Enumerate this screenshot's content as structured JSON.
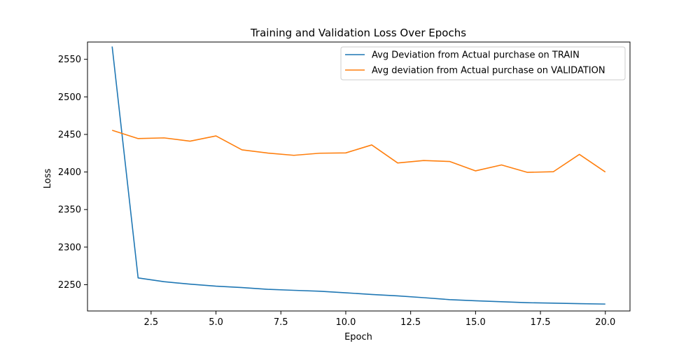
{
  "chart_data": {
    "type": "line",
    "title": "Training and Validation Loss Over Epochs",
    "xlabel": "Epoch",
    "ylabel": "Loss",
    "xlim": [
      0.05,
      20.95
    ],
    "ylim": [
      2215,
      2573
    ],
    "xticks": [
      2.5,
      5.0,
      7.5,
      10.0,
      12.5,
      15.0,
      17.5,
      20.0
    ],
    "xtick_labels": [
      "2.5",
      "5.0",
      "7.5",
      "10.0",
      "12.5",
      "15.0",
      "17.5",
      "20.0"
    ],
    "yticks": [
      2250,
      2300,
      2350,
      2400,
      2450,
      2500,
      2550
    ],
    "ytick_labels": [
      "2250",
      "2300",
      "2350",
      "2400",
      "2450",
      "2500",
      "2550"
    ],
    "grid": false,
    "legend": "top-right",
    "x": [
      1,
      2,
      3,
      4,
      5,
      6,
      7,
      8,
      9,
      10,
      11,
      12,
      13,
      14,
      15,
      16,
      17,
      18,
      19,
      20
    ],
    "series": [
      {
        "name": "Avg Deviation from Actual purchase on TRAIN",
        "color": "#1f77b4",
        "values": [
          2567,
          2259,
          2254,
          2250.7,
          2248,
          2246.2,
          2243.8,
          2242.5,
          2241.3,
          2239.2,
          2237,
          2235.1,
          2232.7,
          2230.1,
          2228.6,
          2227.3,
          2226,
          2225.4,
          2224.7,
          2224.2
        ]
      },
      {
        "name": "Avg deviation from Actual purchase on VALIDATION",
        "color": "#ff7f0e",
        "values": [
          2455.5,
          2444.5,
          2445.4,
          2441,
          2448,
          2429.5,
          2425.2,
          2422.2,
          2425,
          2425.4,
          2436,
          2412,
          2415.3,
          2414,
          2401.5,
          2409.4,
          2399.5,
          2400.4,
          2423.4,
          2400
        ]
      }
    ]
  }
}
